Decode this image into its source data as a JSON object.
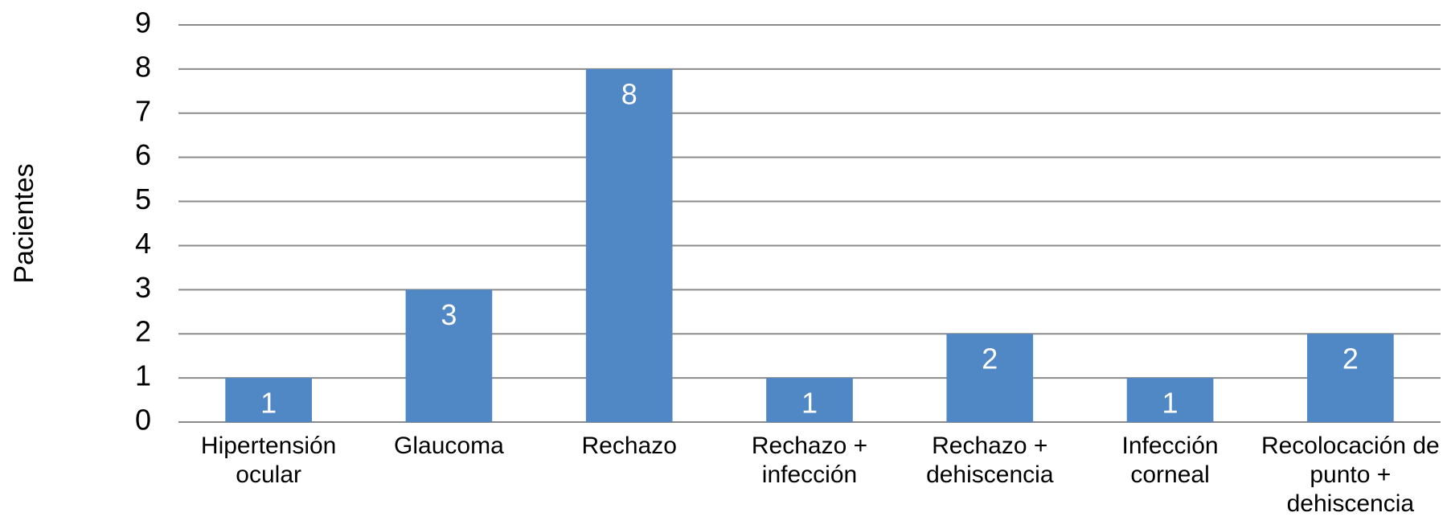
{
  "chart_data": {
    "type": "bar",
    "y_label": "Pacientes",
    "categories": [
      "Hipertensión ocular",
      "Glaucoma",
      "Rechazo",
      "Rechazo + infección",
      "Rechazo + dehiscencia",
      "Infección corneal",
      "Recolocación de punto + dehiscencia"
    ],
    "values": [
      1,
      3,
      8,
      1,
      2,
      1,
      2
    ],
    "color": "#5087c5",
    "ylim": [
      0,
      9
    ],
    "yticks": [
      0,
      1,
      2,
      3,
      4,
      5,
      6,
      7,
      8,
      9
    ],
    "grid": true
  }
}
